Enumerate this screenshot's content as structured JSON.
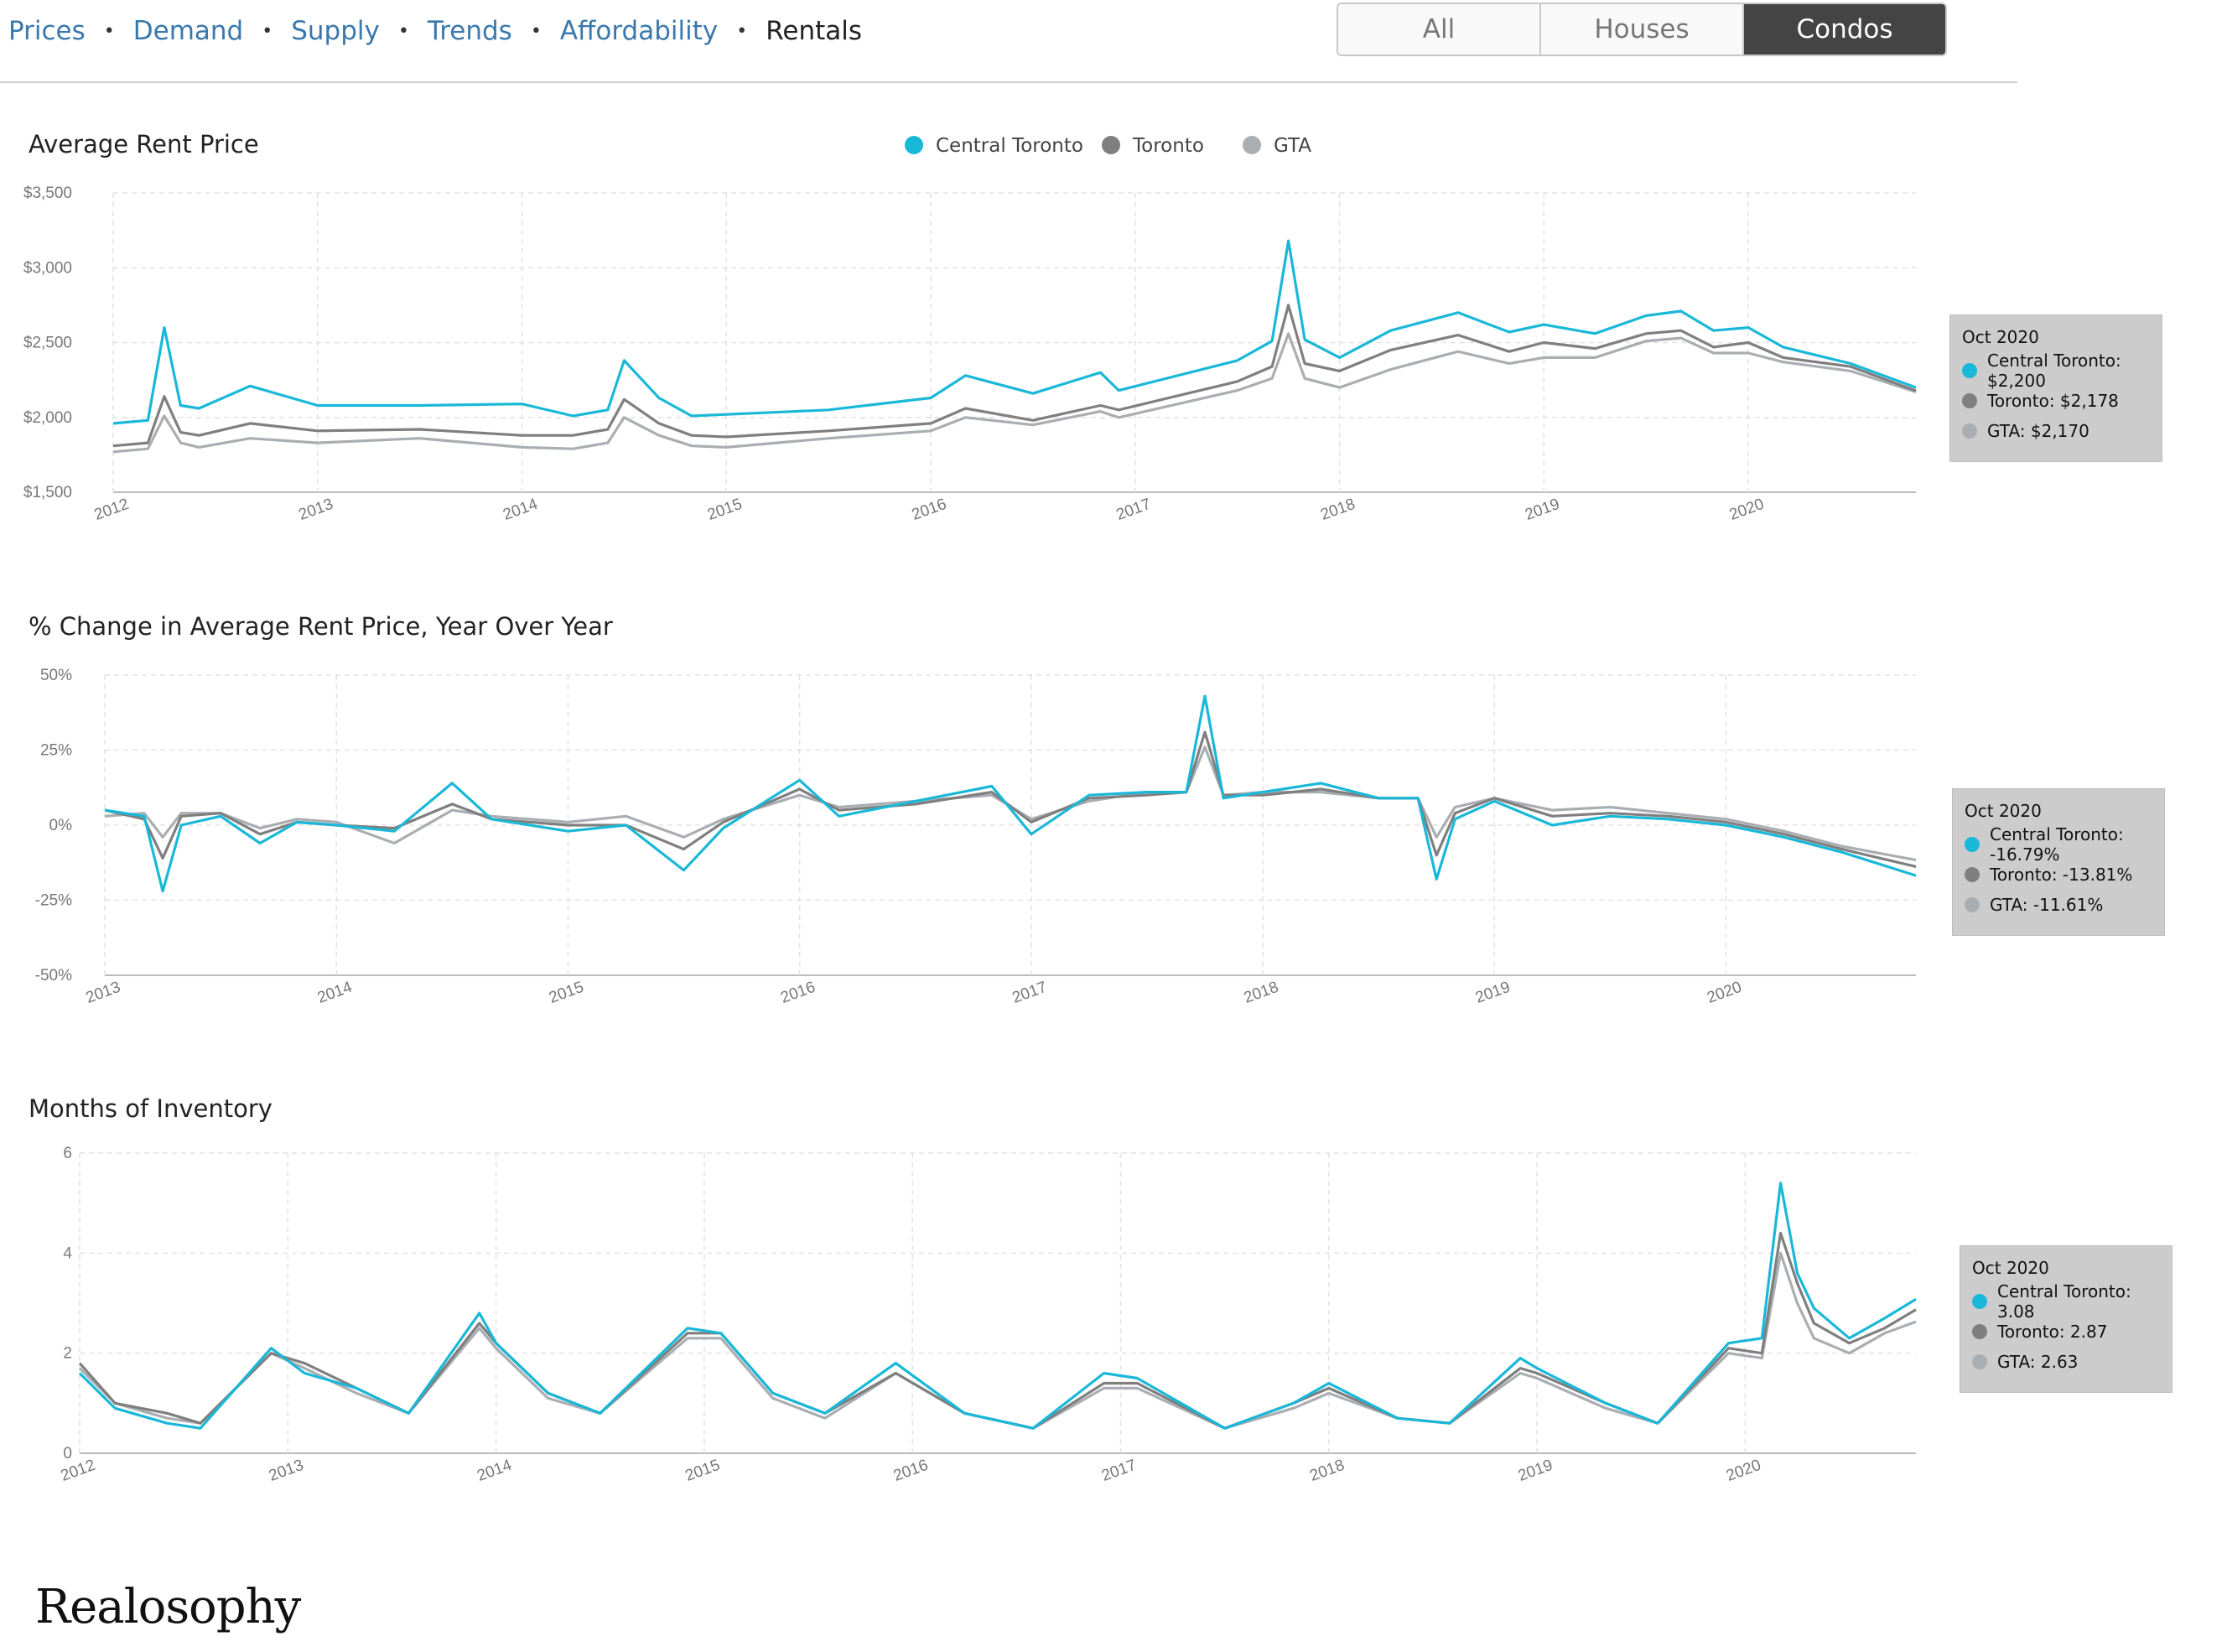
{
  "nav": {
    "items": [
      {
        "label": "Prices"
      },
      {
        "label": "Demand"
      },
      {
        "label": "Supply"
      },
      {
        "label": "Trends"
      },
      {
        "label": "Affordability"
      },
      {
        "label": "Rentals"
      }
    ],
    "current": "Rentals"
  },
  "segmented": {
    "options": [
      {
        "label": "All"
      },
      {
        "label": "Houses"
      },
      {
        "label": "Condos"
      }
    ],
    "selected": "Condos"
  },
  "colors": {
    "central_toronto": "#1ab8d8",
    "toronto": "#7f7f7f",
    "gta": "#a9aeb3"
  },
  "legend": {
    "items": [
      {
        "label": "Central Toronto",
        "color": "#1ab8d8"
      },
      {
        "label": "Toronto",
        "color": "#7f7f7f"
      },
      {
        "label": "GTA",
        "color": "#a9aeb3"
      }
    ]
  },
  "chart_data": [
    {
      "type": "line",
      "title": "Average Rent Price",
      "ylim": [
        1500,
        3500
      ],
      "yticks": [
        "$3,500",
        "$3,000",
        "$2,500",
        "$2,000",
        "$1,500"
      ],
      "xlim": [
        2012,
        2020.82
      ],
      "xticks": [
        "2012",
        "2013",
        "2014",
        "2015",
        "2016",
        "2017",
        "2018",
        "2019",
        "2020"
      ],
      "grid": true,
      "legend_position": "top-center",
      "series": [
        {
          "name": "Central Toronto",
          "color": "#1ab8d8",
          "x": [
            2012,
            2012.17,
            2012.25,
            2012.33,
            2012.42,
            2012.67,
            2013,
            2013.5,
            2014,
            2014.25,
            2014.42,
            2014.5,
            2014.67,
            2014.83,
            2015,
            2015.5,
            2016,
            2016.17,
            2016.5,
            2016.83,
            2016.92,
            2017.5,
            2017.67,
            2017.75,
            2017.83,
            2018,
            2018.25,
            2018.58,
            2018.83,
            2019,
            2019.25,
            2019.5,
            2019.67,
            2019.83,
            2020,
            2020.17,
            2020.5,
            2020.82
          ],
          "values": [
            1960,
            1980,
            2600,
            2080,
            2060,
            2210,
            2080,
            2080,
            2090,
            2010,
            2050,
            2380,
            2130,
            2010,
            2020,
            2050,
            2130,
            2280,
            2160,
            2300,
            2180,
            2380,
            2510,
            3180,
            2520,
            2400,
            2580,
            2700,
            2570,
            2620,
            2560,
            2680,
            2710,
            2580,
            2600,
            2470,
            2360,
            2200
          ]
        },
        {
          "name": "Toronto",
          "color": "#7f7f7f",
          "x": [
            2012,
            2012.17,
            2012.25,
            2012.33,
            2012.42,
            2012.67,
            2013,
            2013.5,
            2014,
            2014.25,
            2014.42,
            2014.5,
            2014.67,
            2014.83,
            2015,
            2015.5,
            2016,
            2016.17,
            2016.5,
            2016.83,
            2016.92,
            2017.5,
            2017.67,
            2017.75,
            2017.83,
            2018,
            2018.25,
            2018.58,
            2018.83,
            2019,
            2019.25,
            2019.5,
            2019.67,
            2019.83,
            2020,
            2020.17,
            2020.5,
            2020.82
          ],
          "values": [
            1810,
            1830,
            2140,
            1900,
            1880,
            1960,
            1910,
            1920,
            1880,
            1880,
            1920,
            2120,
            1960,
            1880,
            1870,
            1910,
            1960,
            2060,
            1980,
            2080,
            2050,
            2240,
            2340,
            2750,
            2360,
            2310,
            2450,
            2550,
            2440,
            2500,
            2460,
            2560,
            2580,
            2470,
            2500,
            2400,
            2340,
            2178
          ]
        },
        {
          "name": "GTA",
          "color": "#a9aeb3",
          "x": [
            2012,
            2012.17,
            2012.25,
            2012.33,
            2012.42,
            2012.67,
            2013,
            2013.5,
            2014,
            2014.25,
            2014.42,
            2014.5,
            2014.67,
            2014.83,
            2015,
            2015.5,
            2016,
            2016.17,
            2016.5,
            2016.83,
            2016.92,
            2017.5,
            2017.67,
            2017.75,
            2017.83,
            2018,
            2018.25,
            2018.58,
            2018.83,
            2019,
            2019.25,
            2019.5,
            2019.67,
            2019.83,
            2020,
            2020.17,
            2020.5,
            2020.82
          ],
          "values": [
            1770,
            1790,
            2010,
            1830,
            1800,
            1860,
            1830,
            1860,
            1800,
            1790,
            1830,
            2000,
            1880,
            1810,
            1800,
            1860,
            1910,
            2000,
            1950,
            2040,
            2000,
            2180,
            2260,
            2560,
            2260,
            2200,
            2320,
            2440,
            2360,
            2400,
            2400,
            2510,
            2530,
            2430,
            2430,
            2370,
            2310,
            2170
          ]
        }
      ],
      "tooltip": {
        "title": "Oct 2020",
        "rows": [
          {
            "label": "Central Toronto: $2,200",
            "color": "#1ab8d8"
          },
          {
            "label": "Toronto: $2,178",
            "color": "#7f7f7f"
          },
          {
            "label": "GTA: $2,170",
            "color": "#a9aeb3"
          }
        ]
      }
    },
    {
      "type": "line",
      "title": "% Change in Average Rent Price, Year Over Year",
      "ylim": [
        -50,
        50
      ],
      "yticks": [
        "50%",
        "25%",
        "0%",
        "-25%",
        "-50%"
      ],
      "xlim": [
        2013,
        2020.82
      ],
      "xticks": [
        "2013",
        "2014",
        "2015",
        "2016",
        "2017",
        "2018",
        "2019",
        "2020"
      ],
      "grid": true,
      "series": [
        {
          "name": "Central Toronto",
          "color": "#1ab8d8",
          "x": [
            2013,
            2013.17,
            2013.25,
            2013.33,
            2013.5,
            2013.67,
            2013.83,
            2014,
            2014.25,
            2014.5,
            2014.67,
            2015,
            2015.25,
            2015.5,
            2015.67,
            2016,
            2016.17,
            2016.5,
            2016.83,
            2017,
            2017.25,
            2017.5,
            2017.67,
            2017.75,
            2017.83,
            2018,
            2018.25,
            2018.5,
            2018.67,
            2018.75,
            2018.83,
            2019,
            2019.25,
            2019.5,
            2019.75,
            2020,
            2020.25,
            2020.5,
            2020.82
          ],
          "values": [
            5,
            3,
            -22,
            0,
            3,
            -6,
            1,
            0,
            -2,
            14,
            2,
            -2,
            0,
            -15,
            -1,
            15,
            3,
            8,
            13,
            -3,
            10,
            11,
            11,
            43,
            9,
            11,
            14,
            9,
            9,
            -18,
            2,
            8,
            0,
            3,
            2,
            0,
            -4,
            -9,
            -16.79
          ]
        },
        {
          "name": "Toronto",
          "color": "#7f7f7f",
          "x": [
            2013,
            2013.17,
            2013.25,
            2013.33,
            2013.5,
            2013.67,
            2013.83,
            2014,
            2014.25,
            2014.5,
            2014.67,
            2015,
            2015.25,
            2015.5,
            2015.67,
            2016,
            2016.17,
            2016.5,
            2016.83,
            2017,
            2017.25,
            2017.5,
            2017.67,
            2017.75,
            2017.83,
            2018,
            2018.25,
            2018.5,
            2018.67,
            2018.75,
            2018.83,
            2019,
            2019.25,
            2019.5,
            2019.75,
            2020,
            2020.25,
            2020.5,
            2020.82
          ],
          "values": [
            5,
            2,
            -11,
            3,
            4,
            -3,
            1,
            0,
            -1,
            7,
            2,
            0,
            0,
            -8,
            1,
            12,
            5,
            7,
            11,
            1,
            9,
            10,
            11,
            31,
            10,
            10,
            12,
            9,
            9,
            -10,
            4,
            9,
            3,
            4,
            3,
            1,
            -3,
            -8,
            -13.81
          ]
        },
        {
          "name": "GTA",
          "color": "#a9aeb3",
          "x": [
            2013,
            2013.17,
            2013.25,
            2013.33,
            2013.5,
            2013.67,
            2013.83,
            2014,
            2014.25,
            2014.5,
            2014.67,
            2015,
            2015.25,
            2015.5,
            2015.67,
            2016,
            2016.17,
            2016.5,
            2016.83,
            2017,
            2017.25,
            2017.5,
            2017.67,
            2017.75,
            2017.83,
            2018,
            2018.25,
            2018.5,
            2018.67,
            2018.75,
            2018.83,
            2019,
            2019.25,
            2019.5,
            2019.75,
            2020,
            2020.25,
            2020.5,
            2020.82
          ],
          "values": [
            3,
            4,
            -4,
            4,
            4,
            -1,
            2,
            1,
            -6,
            5,
            3,
            1,
            3,
            -4,
            2,
            10,
            6,
            8,
            10,
            2,
            8,
            11,
            11,
            26,
            10,
            11,
            11,
            9,
            9,
            -4,
            6,
            9,
            5,
            6,
            4,
            2,
            -2,
            -7,
            -11.61
          ]
        }
      ],
      "tooltip": {
        "title": "Oct 2020",
        "rows": [
          {
            "label": "Central Toronto: -16.79%",
            "color": "#1ab8d8"
          },
          {
            "label": "Toronto: -13.81%",
            "color": "#7f7f7f"
          },
          {
            "label": "GTA: -11.61%",
            "color": "#a9aeb3"
          }
        ]
      }
    },
    {
      "type": "line",
      "title": "Months of Inventory",
      "ylim": [
        0,
        6
      ],
      "yticks": [
        "6",
        "4",
        "2",
        "0"
      ],
      "xlim": [
        2012,
        2020.82
      ],
      "xticks": [
        "2012",
        "2013",
        "2014",
        "2015",
        "2016",
        "2017",
        "2018",
        "2019",
        "2020"
      ],
      "grid": true,
      "series": [
        {
          "name": "Central Toronto",
          "color": "#1ab8d8",
          "x": [
            2012,
            2012.17,
            2012.42,
            2012.58,
            2012.92,
            2013.08,
            2013.33,
            2013.58,
            2013.92,
            2014,
            2014.25,
            2014.5,
            2014.92,
            2015.08,
            2015.33,
            2015.58,
            2015.92,
            2016.25,
            2016.58,
            2016.92,
            2017.08,
            2017.5,
            2017.83,
            2018,
            2018.33,
            2018.58,
            2018.92,
            2019,
            2019.33,
            2019.58,
            2019.92,
            2020.08,
            2020.17,
            2020.25,
            2020.33,
            2020.5,
            2020.67,
            2020.82
          ],
          "values": [
            1.6,
            0.9,
            0.6,
            0.5,
            2.1,
            1.6,
            1.3,
            0.8,
            2.8,
            2.2,
            1.2,
            0.8,
            2.5,
            2.4,
            1.2,
            0.8,
            1.8,
            0.8,
            0.5,
            1.6,
            1.5,
            0.5,
            1.0,
            1.4,
            0.7,
            0.6,
            1.9,
            1.7,
            1.0,
            0.6,
            2.2,
            2.3,
            5.4,
            3.6,
            2.9,
            2.3,
            2.7,
            3.08
          ]
        },
        {
          "name": "Toronto",
          "color": "#7f7f7f",
          "x": [
            2012,
            2012.17,
            2012.42,
            2012.58,
            2012.92,
            2013.08,
            2013.33,
            2013.58,
            2013.92,
            2014,
            2014.25,
            2014.5,
            2014.92,
            2015.08,
            2015.33,
            2015.58,
            2015.92,
            2016.25,
            2016.58,
            2016.92,
            2017.08,
            2017.5,
            2017.83,
            2018,
            2018.33,
            2018.58,
            2018.92,
            2019,
            2019.33,
            2019.58,
            2019.92,
            2020.08,
            2020.17,
            2020.25,
            2020.33,
            2020.5,
            2020.67,
            2020.82
          ],
          "values": [
            1.8,
            1.0,
            0.8,
            0.6,
            2.0,
            1.8,
            1.3,
            0.8,
            2.6,
            2.2,
            1.2,
            0.8,
            2.4,
            2.4,
            1.2,
            0.8,
            1.6,
            0.8,
            0.5,
            1.4,
            1.4,
            0.5,
            1.0,
            1.3,
            0.7,
            0.6,
            1.7,
            1.6,
            1.0,
            0.6,
            2.1,
            2.0,
            4.4,
            3.4,
            2.6,
            2.2,
            2.5,
            2.87
          ]
        },
        {
          "name": "GTA",
          "color": "#a9aeb3",
          "x": [
            2012,
            2012.17,
            2012.42,
            2012.58,
            2012.92,
            2013.08,
            2013.33,
            2013.58,
            2013.92,
            2014,
            2014.25,
            2014.5,
            2014.92,
            2015.08,
            2015.33,
            2015.58,
            2015.92,
            2016.25,
            2016.58,
            2016.92,
            2017.08,
            2017.5,
            2017.83,
            2018,
            2018.33,
            2018.58,
            2018.92,
            2019,
            2019.33,
            2019.58,
            2019.92,
            2020.08,
            2020.17,
            2020.25,
            2020.33,
            2020.5,
            2020.67,
            2020.82
          ],
          "values": [
            1.7,
            1.0,
            0.7,
            0.6,
            2.0,
            1.7,
            1.2,
            0.8,
            2.5,
            2.1,
            1.1,
            0.8,
            2.3,
            2.3,
            1.1,
            0.7,
            1.6,
            0.8,
            0.5,
            1.3,
            1.3,
            0.5,
            0.9,
            1.2,
            0.7,
            0.6,
            1.6,
            1.5,
            0.9,
            0.6,
            2.0,
            1.9,
            4.0,
            3.0,
            2.3,
            2.0,
            2.4,
            2.63
          ]
        }
      ],
      "tooltip": {
        "title": "Oct 2020",
        "rows": [
          {
            "label": "Central Toronto: 3.08",
            "color": "#1ab8d8"
          },
          {
            "label": "Toronto: 2.87",
            "color": "#7f7f7f"
          },
          {
            "label": "GTA: 2.63",
            "color": "#a9aeb3"
          }
        ]
      }
    }
  ],
  "footer": {
    "brand": "Realosophy"
  }
}
